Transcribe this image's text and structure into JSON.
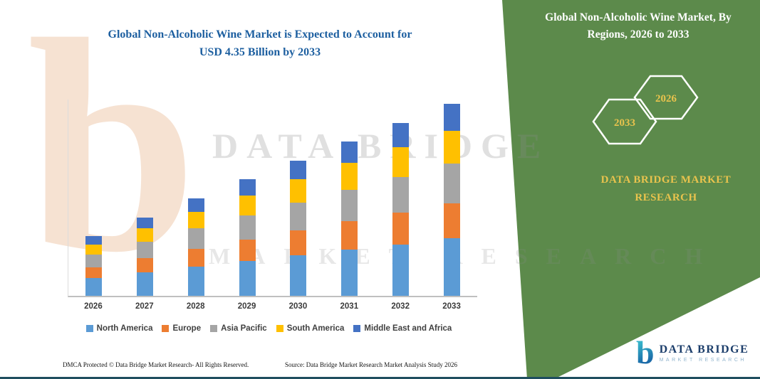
{
  "main": {
    "title_line1": "Global Non-Alcoholic Wine Market is Expected to Account for",
    "title_line2": "USD 4.35 Billion by 2033",
    "title_color": "#1d5fa0"
  },
  "chart_data": {
    "type": "bar",
    "stacked": true,
    "title": "Global Non-Alcoholic Wine Market is Expected to Account for USD 4.35 Billion by 2033",
    "value_unit": "USD Billion",
    "categories": [
      "2026",
      "2027",
      "2028",
      "2029",
      "2030",
      "2031",
      "2032",
      "2033"
    ],
    "series": [
      {
        "name": "North America",
        "color": "#5B9BD5",
        "values": [
          0.4,
          0.53,
          0.66,
          0.79,
          0.92,
          1.05,
          1.17,
          1.3
        ]
      },
      {
        "name": "Europe",
        "color": "#ED7D31",
        "values": [
          0.25,
          0.33,
          0.41,
          0.49,
          0.57,
          0.64,
          0.72,
          0.8
        ]
      },
      {
        "name": "Asia Pacific",
        "color": "#A5A5A5",
        "values": [
          0.28,
          0.37,
          0.46,
          0.55,
          0.63,
          0.72,
          0.81,
          0.9
        ]
      },
      {
        "name": "South America",
        "color": "#FFC000",
        "values": [
          0.23,
          0.3,
          0.38,
          0.45,
          0.52,
          0.6,
          0.67,
          0.75
        ]
      },
      {
        "name": "Middle East and Africa",
        "color": "#4472C4",
        "values": [
          0.19,
          0.25,
          0.3,
          0.36,
          0.43,
          0.49,
          0.55,
          0.6
        ]
      }
    ],
    "estimated_totals": [
      1.35,
      1.78,
      2.21,
      2.64,
      3.07,
      3.5,
      3.92,
      4.35
    ],
    "ylim": [
      0,
      4.5
    ],
    "grid": false,
    "legend_position": "bottom"
  },
  "side_panel": {
    "title": "Global Non-Alcoholic Wine Market, By Regions, 2026 to 2033",
    "hexagon_left_year": "2033",
    "hexagon_right_year": "2026",
    "brand_text": "DATA BRIDGE MARKET RESEARCH",
    "bg_color": "#5C8A4B",
    "accent_color": "#E9C34D"
  },
  "watermark": {
    "line1": "DATA BRIDGE",
    "line2": "MARKET RESEARCH"
  },
  "footer": {
    "dmca": "DMCA Protected © Data Bridge Market Research- All Rights Reserved.",
    "source": "Source: Data Bridge Market Research Market Analysis Study 2026"
  },
  "logo": {
    "glyph": "b",
    "name": "DATA BRIDGE",
    "subtitle": "MARKET RESEARCH"
  }
}
